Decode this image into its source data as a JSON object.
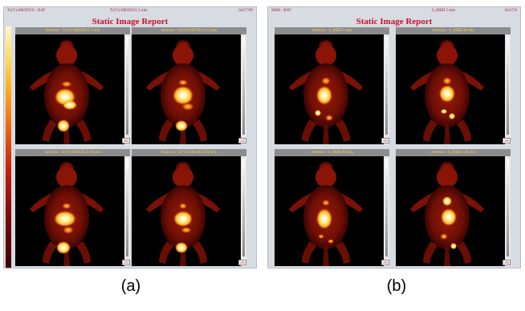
{
  "panels": [
    {
      "id": "a",
      "header_left": "Tc(V)-DBODCS - RAT",
      "header_center": "Tc(V)-DBODCS 5 min",
      "header_right": "04/27/09",
      "report_title": "Static Image Report",
      "images": [
        {
          "title": "Anterior - Tc(V)-DBODCS 5 min",
          "scale_value": "204"
        },
        {
          "title": "Anterior - Tc(V)-DBODCS 15 min",
          "scale_value": "242"
        },
        {
          "title": "Anterior - Tc(V)-DBODCS 30 min",
          "scale_value": "204"
        },
        {
          "title": "Anterior - Tc(V)-DBODCS 60 min",
          "scale_value": "206"
        }
      ],
      "caption": "(a)"
    },
    {
      "id": "b",
      "header_left": "MIBI - RAT",
      "header_center": "S_MIBI 5 min",
      "header_right": "04/27/0",
      "report_title": "Static Image Report",
      "images": [
        {
          "title": "Anterior - S_MIBI 5 min",
          "scale_value": "206"
        },
        {
          "title": "Anterior - S_MIBI 30 min",
          "scale_value": "206"
        },
        {
          "title": "Anterior - S_MIBI 60 min",
          "scale_value": "206"
        },
        {
          "title": "Anterior - S_MIBI 120 min",
          "scale_value": "206"
        }
      ],
      "caption": "(b)"
    }
  ],
  "colors": {
    "panel_bg": "#d7dce2",
    "title_red": "#c8102e",
    "image_title_yellow": "#ffd24a"
  }
}
